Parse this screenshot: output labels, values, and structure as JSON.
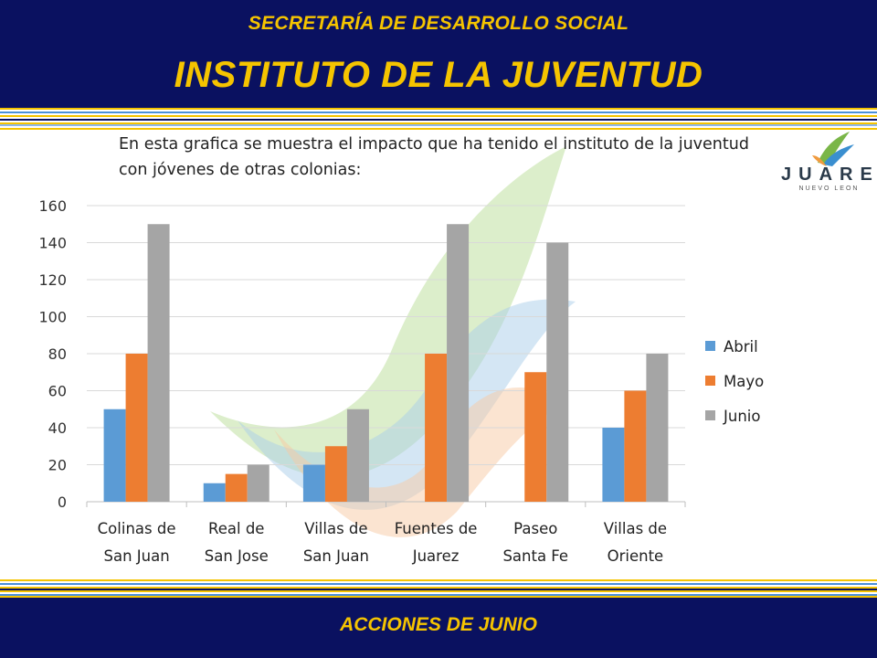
{
  "header": {
    "subtitle": "SECRETARÍA DE DESARROLLO SOCIAL",
    "title": "INSTITUTO DE LA JUVENTUD"
  },
  "description": "En esta grafica se muestra el impacto que ha tenido el instituto de la juventud con jóvenes de otras colonias:",
  "logo": {
    "text": "JUAREZ",
    "subtext": "NUEVO LEON"
  },
  "footer": {
    "text": "ACCIONES DE JUNIO"
  },
  "colors": {
    "navy": "#0a1160",
    "gold": "#f5c400",
    "abril": "#5b9bd5",
    "mayo": "#ed7d31",
    "junio": "#a5a5a5"
  },
  "chart_data": {
    "type": "bar",
    "categories": [
      [
        "Colinas de",
        "San Juan"
      ],
      [
        "Real de",
        "San Jose"
      ],
      [
        "Villas de",
        "San Juan"
      ],
      [
        "Fuentes de",
        "Juarez"
      ],
      [
        "Paseo",
        "Santa Fe"
      ],
      [
        "Villas de",
        "Oriente"
      ]
    ],
    "series": [
      {
        "name": "Abril",
        "values": [
          50,
          10,
          20,
          0,
          0,
          40
        ],
        "color": "#5b9bd5"
      },
      {
        "name": "Mayo",
        "values": [
          80,
          15,
          30,
          80,
          70,
          60
        ],
        "color": "#ed7d31"
      },
      {
        "name": "Junio",
        "values": [
          150,
          20,
          50,
          150,
          140,
          80
        ],
        "color": "#a5a5a5"
      }
    ],
    "ylim": [
      0,
      160
    ],
    "yticks": [
      0,
      20,
      40,
      60,
      80,
      100,
      120,
      140,
      160
    ],
    "grid": true,
    "legend": "right"
  }
}
